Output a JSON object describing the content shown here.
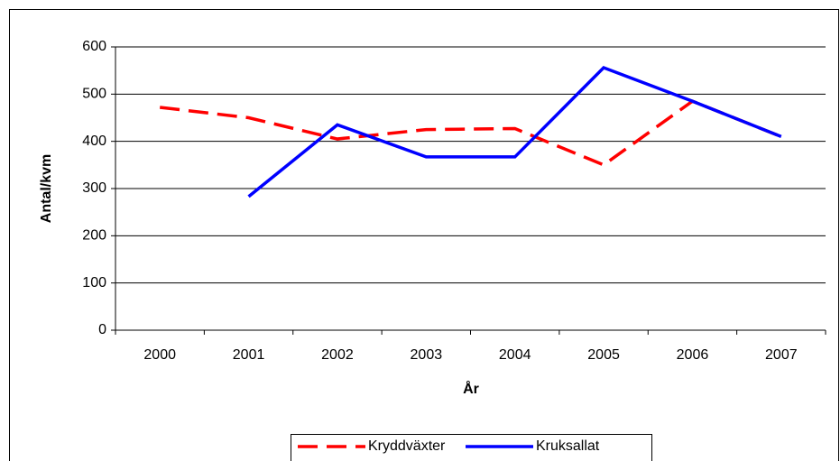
{
  "chart_data": {
    "type": "line",
    "categories": [
      "2000",
      "2001",
      "2002",
      "2003",
      "2004",
      "2005",
      "2006",
      "2007"
    ],
    "series": [
      {
        "name": "Kryddväxter",
        "color": "#ff0000",
        "dash": true,
        "values": [
          472,
          450,
          405,
          425,
          427,
          350,
          485,
          410
        ]
      },
      {
        "name": "Kruksallat",
        "color": "#0000ff",
        "dash": false,
        "values": [
          null,
          283,
          435,
          367,
          367,
          556,
          485,
          410
        ]
      }
    ],
    "ylabel": "Antal/kvm",
    "xlabel": "År",
    "ylim": [
      0,
      600
    ],
    "yticks": [
      0,
      100,
      200,
      300,
      400,
      500,
      600
    ],
    "grid": true
  }
}
